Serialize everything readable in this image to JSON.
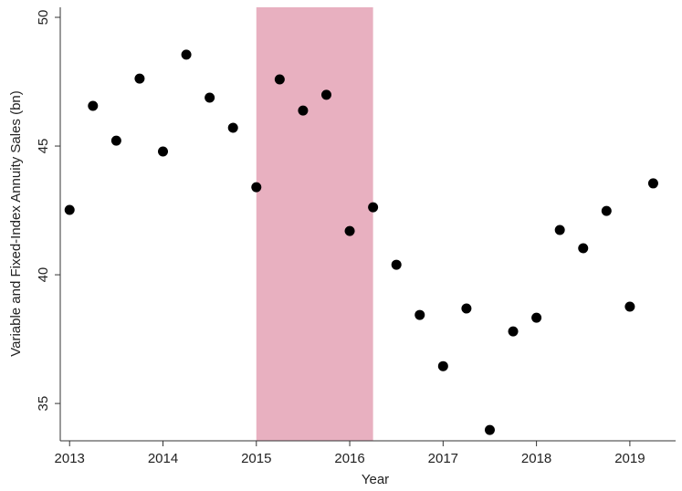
{
  "chart_data": {
    "type": "scatter",
    "xlabel": "Year",
    "ylabel": "Variable and Fixed-Index Annuity Sales (bn)",
    "x": [
      2013,
      2013.25,
      2013.5,
      2013.75,
      2014,
      2014.25,
      2014.5,
      2014.75,
      2015,
      2015.25,
      2015.5,
      2015.75,
      2016,
      2016.25,
      2016.5,
      2016.75,
      2017,
      2017.25,
      2017.5,
      2017.75,
      2018,
      2018.25,
      2018.5,
      2018.75,
      2019,
      2019.25
    ],
    "values": [
      42.52,
      46.56,
      45.21,
      47.62,
      44.79,
      48.55,
      46.88,
      45.71,
      43.4,
      47.59,
      46.38,
      46.99,
      41.7,
      42.62,
      40.39,
      38.44,
      36.45,
      38.69,
      33.97,
      37.8,
      38.33,
      41.74,
      41.03,
      42.48,
      38.76,
      43.55
    ],
    "color": "#000000",
    "shaded_region": [
      2015,
      2016.25
    ],
    "shaded_color": "#e8b0c0",
    "xlim": [
      2012.9,
      2019.49
    ],
    "xticks": [
      2013,
      2014,
      2015,
      2016,
      2017,
      2018,
      2019
    ],
    "ylim": [
      33.55,
      50.39
    ],
    "yticks": [
      35,
      40,
      45,
      50
    ],
    "grid": false
  }
}
